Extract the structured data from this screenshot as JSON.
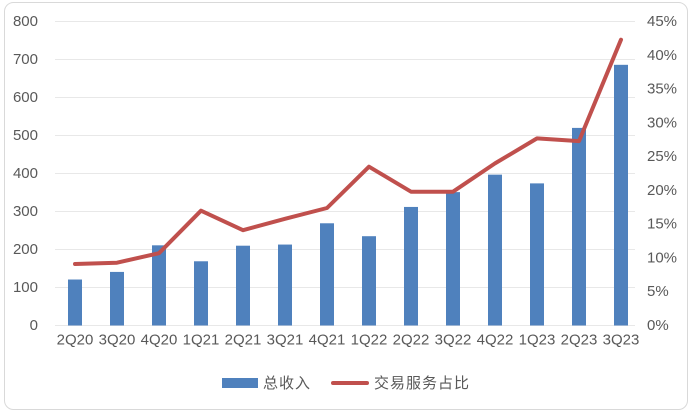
{
  "chart_data": {
    "type": "bar+line combo",
    "categories": [
      "2Q20",
      "3Q20",
      "4Q20",
      "1Q21",
      "2Q21",
      "3Q21",
      "4Q21",
      "1Q22",
      "2Q22",
      "3Q22",
      "4Q22",
      "1Q23",
      "2Q23",
      "3Q23"
    ],
    "series": [
      {
        "name": "总收入",
        "type": "bar",
        "axis": "left",
        "color": "#4F81BD",
        "values": [
          121,
          141,
          211,
          169,
          210,
          213,
          269,
          235,
          312,
          351,
          397,
          374,
          520,
          686
        ]
      },
      {
        "name": "交易服务占比",
        "type": "line",
        "axis": "right",
        "color": "#C0504D",
        "values": [
          9.1,
          9.3,
          10.7,
          17.0,
          14.1,
          15.8,
          17.4,
          23.5,
          19.8,
          19.8,
          24.0,
          27.7,
          27.3,
          42.3
        ]
      }
    ],
    "left_axis": {
      "min": 0,
      "max": 800,
      "step": 100,
      "tick_labels": [
        "800",
        "700",
        "600",
        "500",
        "400",
        "300",
        "200",
        "100",
        "0"
      ]
    },
    "right_axis": {
      "min": 0,
      "max": 45,
      "step": 5,
      "tick_labels": [
        "45%",
        "40%",
        "35%",
        "30%",
        "25%",
        "20%",
        "15%",
        "10%",
        "5%",
        "0%"
      ]
    },
    "title": "",
    "grid": true,
    "legend_position": "bottom"
  },
  "colors": {
    "background": "#FFFFFF",
    "gridline": "#E8E8E8",
    "axis_text": "#595959",
    "chart_border": "#D9D9D9"
  }
}
